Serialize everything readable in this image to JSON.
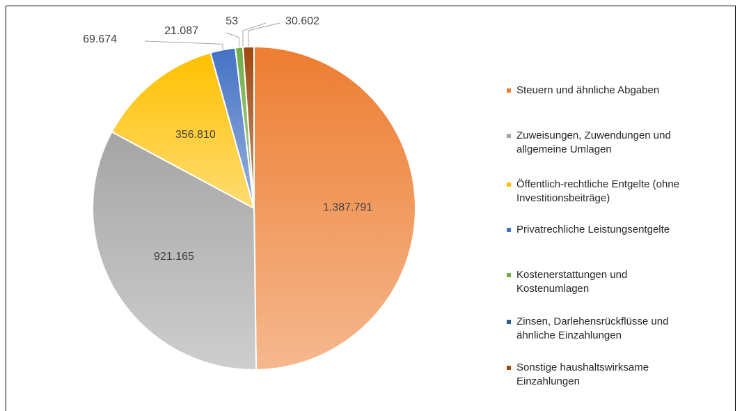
{
  "chart_data": {
    "type": "pie",
    "categories": [
      "Steuern und ähnliche Abgaben",
      "Zuweisungen, Zuwendungen und allgemeine Umlagen",
      "Öffentlich-rechtliche Entgelte (ohne Investitionsbeiträge)",
      "Privatrechliche Leistungsentgelte",
      "Kostenerstattungen und Kostenumlagen",
      "Zinsen, Darlehensrückflüsse und ähnliche Einzahlungen",
      "Sonstige haushaltswirksame Einzahlungen"
    ],
    "values": [
      1387791,
      921165,
      356810,
      69674,
      21087,
      53,
      30602
    ],
    "value_labels": [
      "1.387.791",
      "921.165",
      "356.810",
      "69.674",
      "21.087",
      "53",
      "30.602"
    ],
    "colors": [
      "#ed7d31",
      "#a5a5a5",
      "#ffc000",
      "#4472c4",
      "#70ad47",
      "#255e91",
      "#9e480e"
    ],
    "legend": "right"
  }
}
